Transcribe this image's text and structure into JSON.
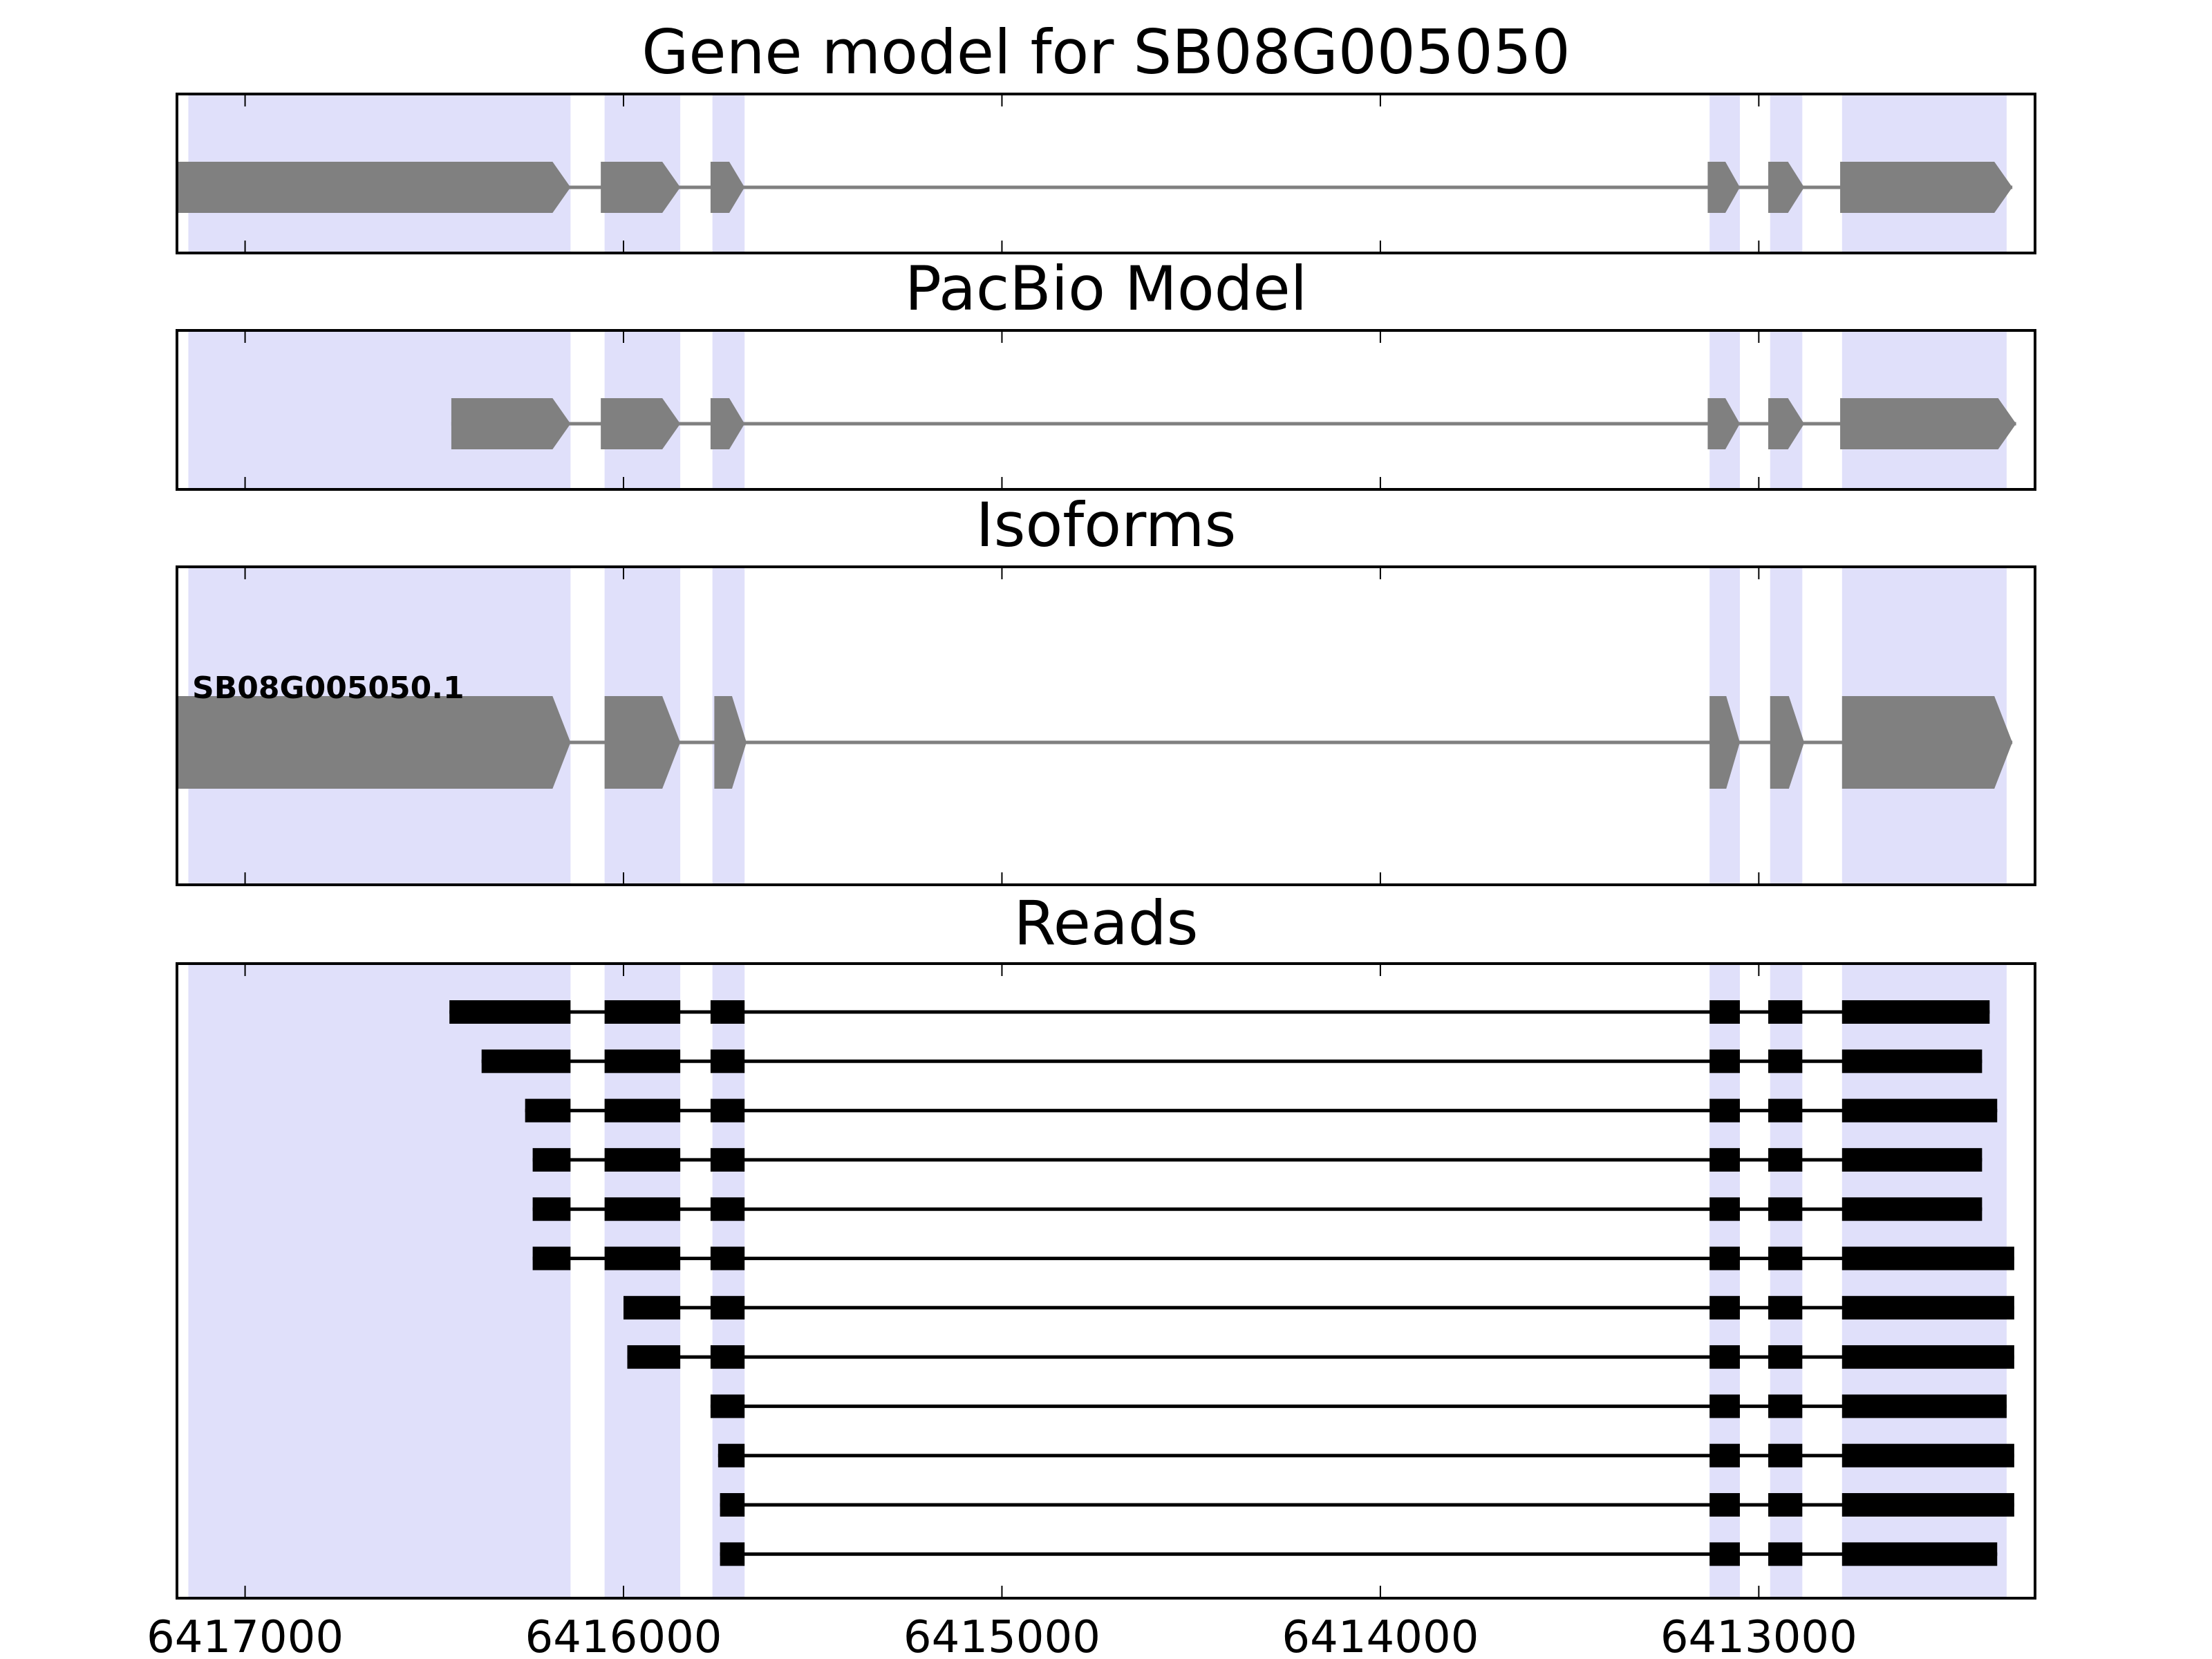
{
  "colors": {
    "exon_band": "#e0e0fa",
    "model_feature": "#808080",
    "read": "#000000",
    "frame": "#000000"
  },
  "axis": {
    "orientation": "reversed",
    "xlim": [
      6417180,
      6412270
    ],
    "ticks": [
      6417000,
      6416000,
      6415000,
      6414000,
      6413000
    ],
    "tick_labels": [
      "6417000",
      "6416000",
      "6415000",
      "6414000",
      "6413000"
    ]
  },
  "exon_regions": [
    [
      6417150,
      6416140
    ],
    [
      6416050,
      6415850
    ],
    [
      6415765,
      6415680
    ],
    [
      6413130,
      6413050
    ],
    [
      6412970,
      6412885
    ],
    [
      6412780,
      6412345
    ]
  ],
  "panels": [
    {
      "id": "gene-model",
      "title": "Gene model for SB08G005050",
      "exons": [
        [
          6417180,
          6416140
        ],
        [
          6416060,
          6415850
        ],
        [
          6415770,
          6415680
        ],
        [
          6413135,
          6413050
        ],
        [
          6412975,
          6412880
        ],
        [
          6412785,
          6412330
        ]
      ]
    },
    {
      "id": "pacbio-model",
      "title": "PacBio Model",
      "exons": [
        [
          6416455,
          6416140
        ],
        [
          6416060,
          6415850
        ],
        [
          6415770,
          6415680
        ],
        [
          6413135,
          6413050
        ],
        [
          6412975,
          6412880
        ],
        [
          6412785,
          6412320
        ]
      ]
    },
    {
      "id": "isoforms",
      "title": "Isoforms",
      "isoforms": [
        {
          "name": "SB08G005050.1",
          "exons": [
            [
              6417180,
              6416140
            ],
            [
              6416050,
              6415850
            ],
            [
              6415760,
              6415675
            ],
            [
              6413130,
              6413050
            ],
            [
              6412970,
              6412880
            ],
            [
              6412780,
              6412330
            ]
          ]
        }
      ]
    },
    {
      "id": "reads",
      "title": "Reads",
      "reads": [
        [
          [
            6416460,
            6416140
          ],
          [
            6416050,
            6415850
          ],
          [
            6415770,
            6415680
          ],
          [
            6413130,
            6413050
          ],
          [
            6412975,
            6412885
          ],
          [
            6412780,
            6412390
          ]
        ],
        [
          [
            6416375,
            6416140
          ],
          [
            6416050,
            6415850
          ],
          [
            6415770,
            6415680
          ],
          [
            6413130,
            6413050
          ],
          [
            6412975,
            6412885
          ],
          [
            6412780,
            6412410
          ]
        ],
        [
          [
            6416260,
            6416140
          ],
          [
            6416050,
            6415850
          ],
          [
            6415770,
            6415680
          ],
          [
            6413130,
            6413050
          ],
          [
            6412975,
            6412885
          ],
          [
            6412780,
            6412370
          ]
        ],
        [
          [
            6416240,
            6416140
          ],
          [
            6416050,
            6415850
          ],
          [
            6415770,
            6415680
          ],
          [
            6413130,
            6413050
          ],
          [
            6412975,
            6412885
          ],
          [
            6412780,
            6412410
          ]
        ],
        [
          [
            6416240,
            6416140
          ],
          [
            6416050,
            6415850
          ],
          [
            6415770,
            6415680
          ],
          [
            6413130,
            6413050
          ],
          [
            6412975,
            6412885
          ],
          [
            6412780,
            6412410
          ]
        ],
        [
          [
            6416240,
            6416140
          ],
          [
            6416050,
            6415850
          ],
          [
            6415770,
            6415680
          ],
          [
            6413130,
            6413050
          ],
          [
            6412975,
            6412885
          ],
          [
            6412780,
            6412325
          ]
        ],
        [
          [
            6416000,
            6415850
          ],
          [
            6415770,
            6415680
          ],
          [
            6413130,
            6413050
          ],
          [
            6412975,
            6412885
          ],
          [
            6412780,
            6412325
          ]
        ],
        [
          [
            6415990,
            6415850
          ],
          [
            6415770,
            6415680
          ],
          [
            6413130,
            6413050
          ],
          [
            6412975,
            6412885
          ],
          [
            6412780,
            6412325
          ]
        ],
        [
          [
            6415770,
            6415680
          ],
          [
            6413130,
            6413050
          ],
          [
            6412975,
            6412885
          ],
          [
            6412780,
            6412345
          ]
        ],
        [
          [
            6415750,
            6415680
          ],
          [
            6413130,
            6413050
          ],
          [
            6412975,
            6412885
          ],
          [
            6412780,
            6412325
          ]
        ],
        [
          [
            6415745,
            6415680
          ],
          [
            6413130,
            6413050
          ],
          [
            6412975,
            6412885
          ],
          [
            6412780,
            6412325
          ]
        ],
        [
          [
            6415745,
            6415680
          ],
          [
            6413130,
            6413050
          ],
          [
            6412975,
            6412885
          ],
          [
            6412780,
            6412370
          ]
        ]
      ]
    }
  ]
}
